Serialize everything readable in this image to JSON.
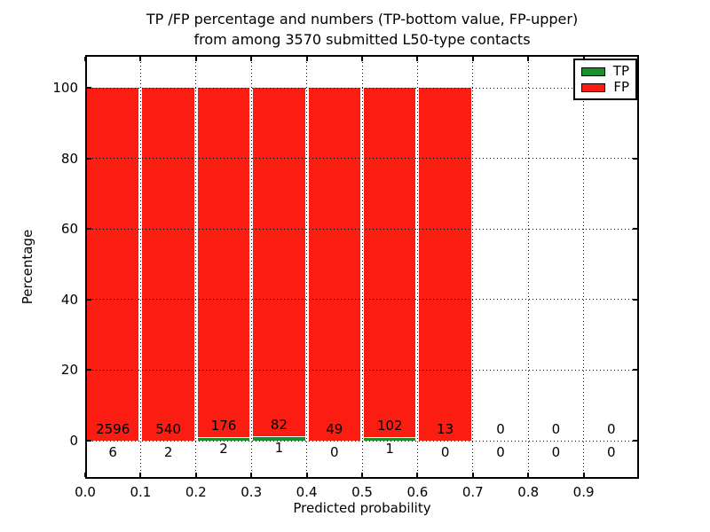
{
  "figure": {
    "title_line1": "TP /FP percentage and numbers (TP-bottom value, FP-upper)",
    "title_line2": "from among 3570 submitted L50-type contacts"
  },
  "axes": {
    "x_label": "Predicted probability",
    "y_label": "Percentage",
    "x_tick_labels": [
      "0.0",
      "0.1",
      "0.2",
      "0.3",
      "0.4",
      "0.5",
      "0.6",
      "0.7",
      "0.8",
      "0.9"
    ],
    "y_tick_labels": [
      "0",
      "20",
      "40",
      "60",
      "80",
      "100"
    ],
    "y_tick_values": [
      0,
      20,
      40,
      60,
      80,
      100
    ],
    "grid_style": "dotted"
  },
  "legend": {
    "position": "upper-right",
    "items": [
      {
        "label": "TP",
        "color": "#17902b"
      },
      {
        "label": "FP",
        "color": "#fb1d12"
      }
    ]
  },
  "chart_data": {
    "type": "bar",
    "stacked": true,
    "unit": "percent",
    "total_contacts": 3570,
    "bin_edges": [
      0.0,
      0.1,
      0.2,
      0.3,
      0.4,
      0.5,
      0.6,
      0.7,
      0.8,
      0.9,
      1.0
    ],
    "categories": [
      "0.0-0.1",
      "0.1-0.2",
      "0.2-0.3",
      "0.3-0.4",
      "0.4-0.5",
      "0.5-0.6",
      "0.6-0.7",
      "0.7-0.8",
      "0.8-0.9",
      "0.9-1.0"
    ],
    "series": [
      {
        "name": "TP",
        "color": "#17902b",
        "counts": [
          6,
          2,
          2,
          1,
          0,
          1,
          0,
          0,
          0,
          0
        ]
      },
      {
        "name": "FP",
        "color": "#fb1d12",
        "counts": [
          2596,
          540,
          176,
          82,
          49,
          102,
          13,
          0,
          0,
          0
        ]
      }
    ],
    "title": "TP /FP percentage and numbers (TP-bottom value, FP-upper) from among 3570 submitted L50-type contacts",
    "xlabel": "Predicted probability",
    "ylabel": "Percentage",
    "ylim": [
      0,
      100
    ],
    "xlim": [
      0.0,
      1.0
    ],
    "grid": true,
    "legend_position": "upper right"
  }
}
